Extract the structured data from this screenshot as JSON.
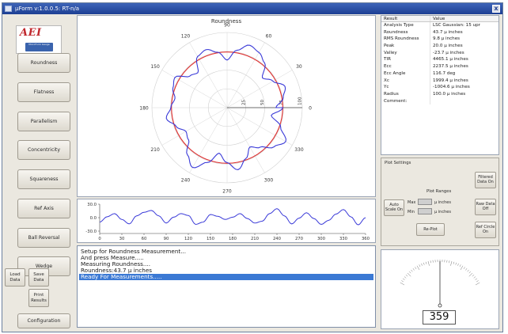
{
  "window": {
    "title": "µForm v:1.0.0.5: RT-n/a",
    "close_glyph": "x"
  },
  "logo": {
    "brand": "AEI",
    "badge": "MicroForm Gauge"
  },
  "nav": [
    "Roundness",
    "Flatness",
    "Parallelism",
    "Concentricity",
    "Squareness",
    "Ref Axis",
    "Ball Reversal",
    "Wedge",
    "Configuration"
  ],
  "actions": {
    "load": "Load Data",
    "save": "Save Data",
    "print": "Print Results"
  },
  "polar_chart": {
    "title": "Roundness",
    "angle_labels": [
      "90",
      "60",
      "30",
      "0",
      "330",
      "300",
      "270",
      "240",
      "210",
      "180",
      "150",
      "120"
    ],
    "radial_labels": [
      "25",
      "50",
      "75",
      "100"
    ],
    "ref_circle_color": "#e03030",
    "trace_color": "#3a3ad8"
  },
  "chart_data": {
    "type": "line",
    "title": "",
    "xlabel": "",
    "ylabel": "",
    "x_ticks": [
      0,
      30,
      60,
      90,
      120,
      150,
      180,
      210,
      240,
      270,
      300,
      330,
      360
    ],
    "y_ticks": [
      "30.0",
      "0.0",
      "-30.0"
    ],
    "xlim": [
      0,
      360
    ],
    "ylim": [
      -30,
      30
    ],
    "series": [
      {
        "x": [
          0,
          10,
          20,
          30,
          40,
          50,
          60,
          70,
          80,
          90,
          100,
          110,
          120,
          130,
          140,
          150,
          160,
          170,
          180,
          190,
          200,
          210,
          220,
          230,
          240,
          250,
          260,
          270,
          280,
          290,
          300,
          310,
          320,
          330,
          340,
          350,
          360
        ],
        "values": [
          -10,
          2,
          9,
          -4,
          -14,
          4,
          12,
          16,
          4,
          -12,
          1,
          9,
          5,
          -15,
          -10,
          7,
          3,
          -4,
          1,
          9,
          -2,
          -12,
          -8,
          9,
          20,
          4,
          -14,
          -1,
          11,
          -2,
          -15,
          -6,
          8,
          18,
          2,
          -16,
          0
        ]
      }
    ]
  },
  "log": {
    "lines": [
      "Setup for Roundness Measurement...",
      "And press Measure.....",
      "Measuring Roundness....",
      "Roundness:43.7 µ inches",
      "Ready For Measurements....."
    ]
  },
  "results": {
    "head": [
      "Result",
      "Value"
    ],
    "rows": [
      [
        "Analysis Type",
        "LSC Gaussian: 15 upr"
      ],
      [
        "Roundness",
        "43.7 µ inches"
      ],
      [
        "RMS Roundness",
        "9.8 µ inches"
      ],
      [
        "Peak",
        "20.0 µ inches"
      ],
      [
        "Valley",
        "-23.7 µ inches"
      ],
      [
        "TIR",
        "4465.1 µ inches"
      ],
      [
        "Ecc",
        "2237.5 µ inches"
      ],
      [
        "Ecc Angle",
        "116.7 deg"
      ],
      [
        "Xc",
        "1999.4 µ inches"
      ],
      [
        "Yc",
        "-1004.6 µ inches"
      ],
      [
        "Radius",
        "100.0 µ inches"
      ],
      [
        "Comment:",
        ""
      ]
    ]
  },
  "plot_settings": {
    "title": "Plot Settings",
    "filtered": "Filtered Data On",
    "ranges": "Plot Ranges",
    "max": "Max",
    "min": "Min",
    "unit": "µ inches",
    "auto_scale": "Auto Scale On",
    "raw": "Raw Data Off",
    "replot": "Re-Plot",
    "ref_circle": "Ref Circle On"
  },
  "gauge": {
    "value": "359"
  }
}
